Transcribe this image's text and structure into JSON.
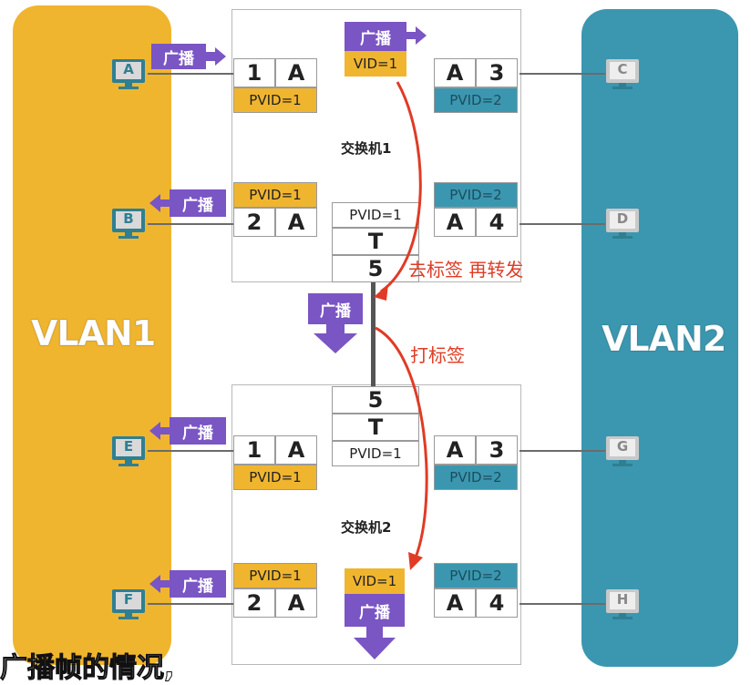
{
  "vlans": {
    "left": {
      "label": "VLAN1",
      "color": "#f0b52f"
    },
    "right": {
      "label": "VLAN2",
      "color": "#3b97b0"
    }
  },
  "switches": {
    "s1": {
      "label": "交换机1",
      "ports": {
        "p1": {
          "num": "1",
          "mode": "A",
          "pvid": "PVID=1"
        },
        "p2": {
          "num": "2",
          "mode": "A",
          "pvid": "PVID=1"
        },
        "p3": {
          "num": "3",
          "mode": "A",
          "pvid": "PVID=2"
        },
        "p4": {
          "num": "4",
          "mode": "A",
          "pvid": "PVID=2"
        },
        "p5": {
          "num": "5",
          "mode": "T",
          "pvid": "PVID=1"
        }
      }
    },
    "s2": {
      "label": "交换机2",
      "ports": {
        "p1": {
          "num": "1",
          "mode": "A",
          "pvid": "PVID=1"
        },
        "p2": {
          "num": "2",
          "mode": "A",
          "pvid": "PVID=1"
        },
        "p3": {
          "num": "3",
          "mode": "A",
          "pvid": "PVID=2"
        },
        "p4": {
          "num": "4",
          "mode": "A",
          "pvid": "PVID=2"
        },
        "p5": {
          "num": "5",
          "mode": "T",
          "pvid": "PVID=1"
        }
      }
    }
  },
  "hosts": {
    "a": "A",
    "b": "B",
    "c": "C",
    "d": "D",
    "e": "E",
    "f": "F",
    "g": "G",
    "h": "H"
  },
  "broadcast_label": "广播",
  "vid_tag": "VID=1",
  "notes": {
    "untag_forward": "去标签 再转发",
    "tag": "打标签"
  },
  "caption": "广播帧的情况,",
  "colors": {
    "broadcast": "#7a55c4",
    "arrow": "#e03b25",
    "host_active": "#2f7f93",
    "host_inactive": "#c9c9c9"
  }
}
